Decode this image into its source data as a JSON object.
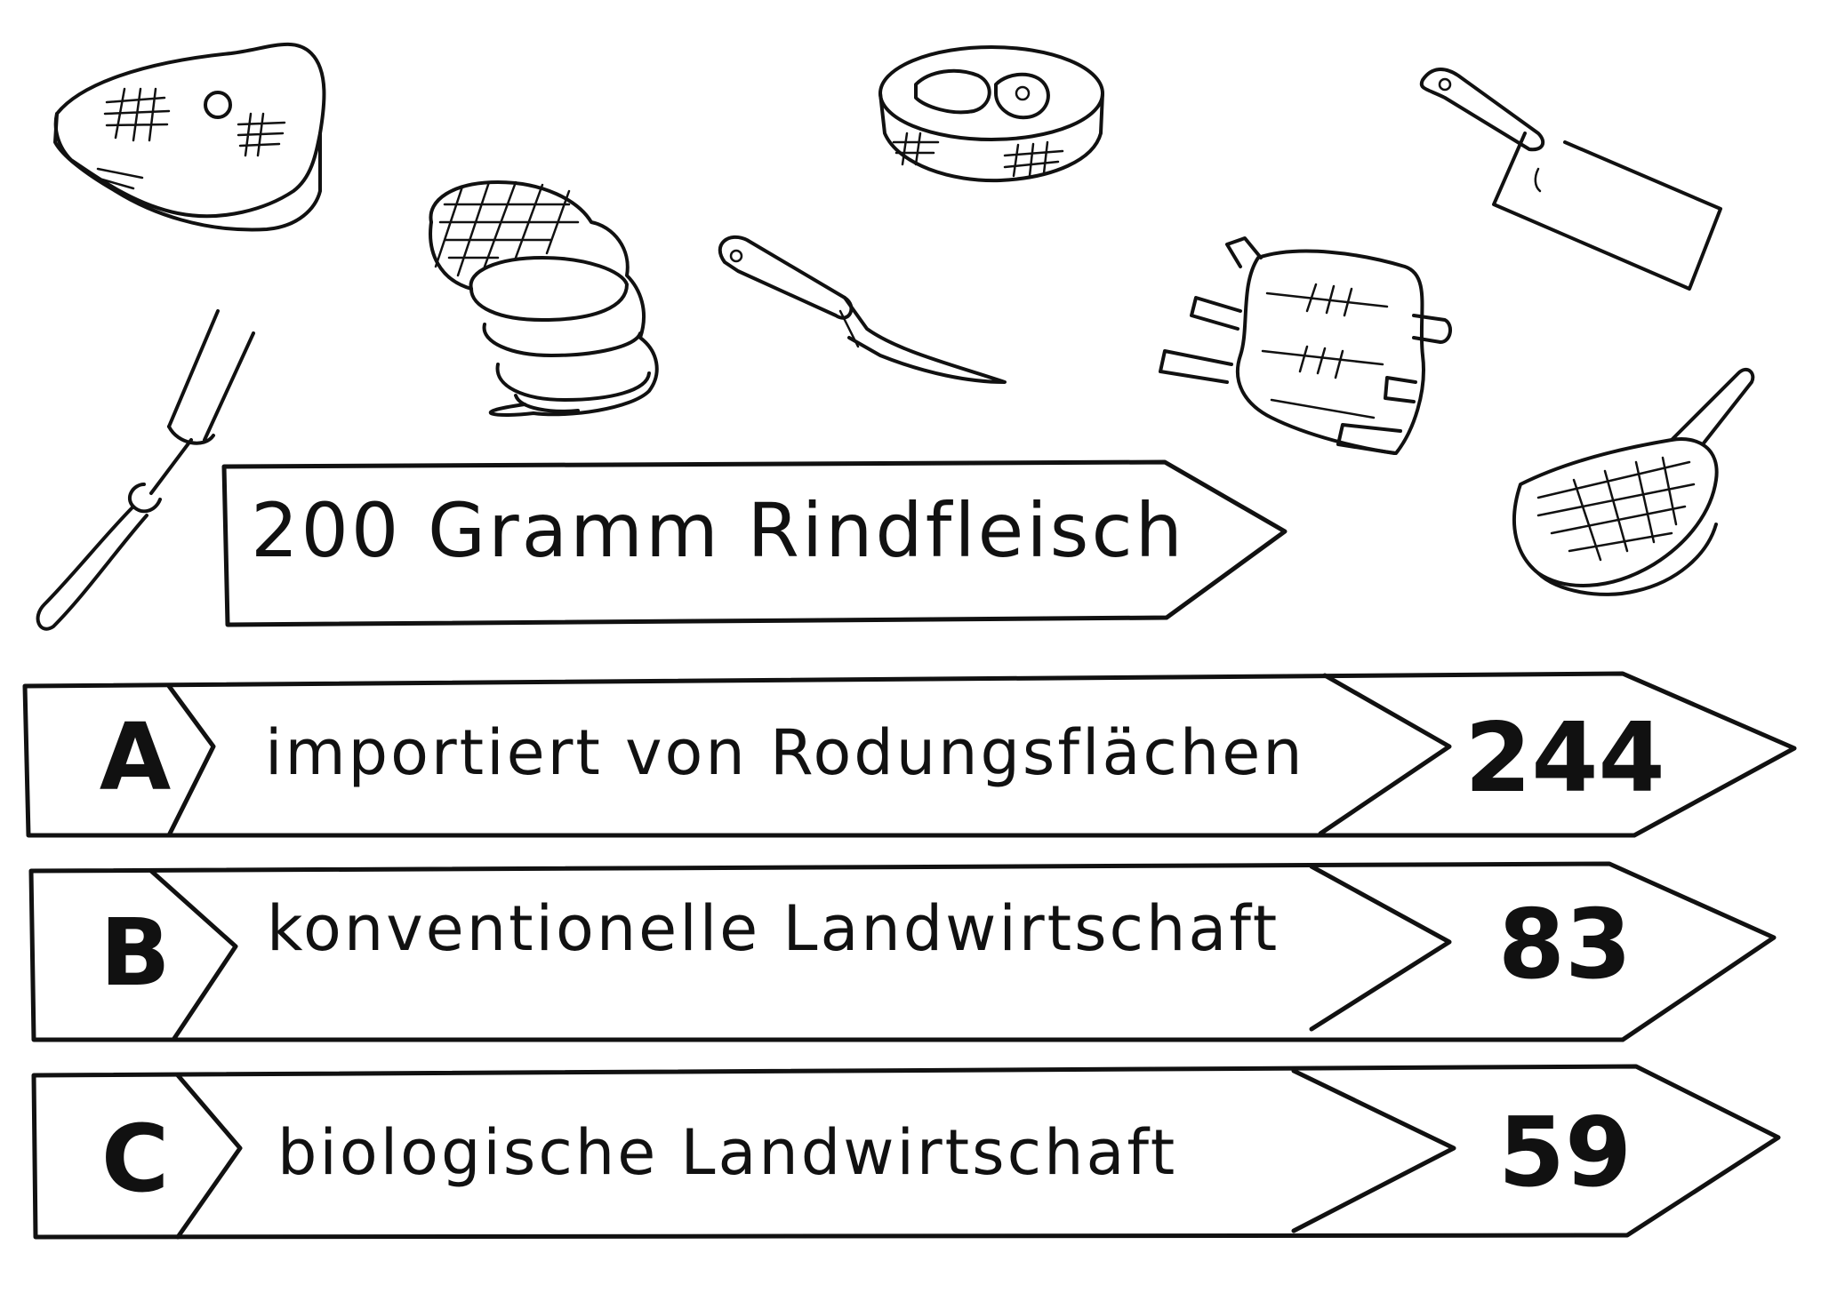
{
  "sign": {
    "title": "200 Gramm Rindfleisch"
  },
  "options": [
    {
      "letter": "A",
      "label": "importiert von Rodungsflächen",
      "value": "244"
    },
    {
      "letter": "B",
      "label": "konventionelle Landwirtschaft",
      "value": "83"
    },
    {
      "letter": "C",
      "label": "biologische Landwirtschaft",
      "value": "59"
    }
  ],
  "illustrations": [
    "steak-icon",
    "roast-icon",
    "round-steak-icon",
    "cleaver-icon",
    "carving-fork-icon",
    "boning-knife-icon",
    "ribs-icon",
    "chop-icon"
  ]
}
